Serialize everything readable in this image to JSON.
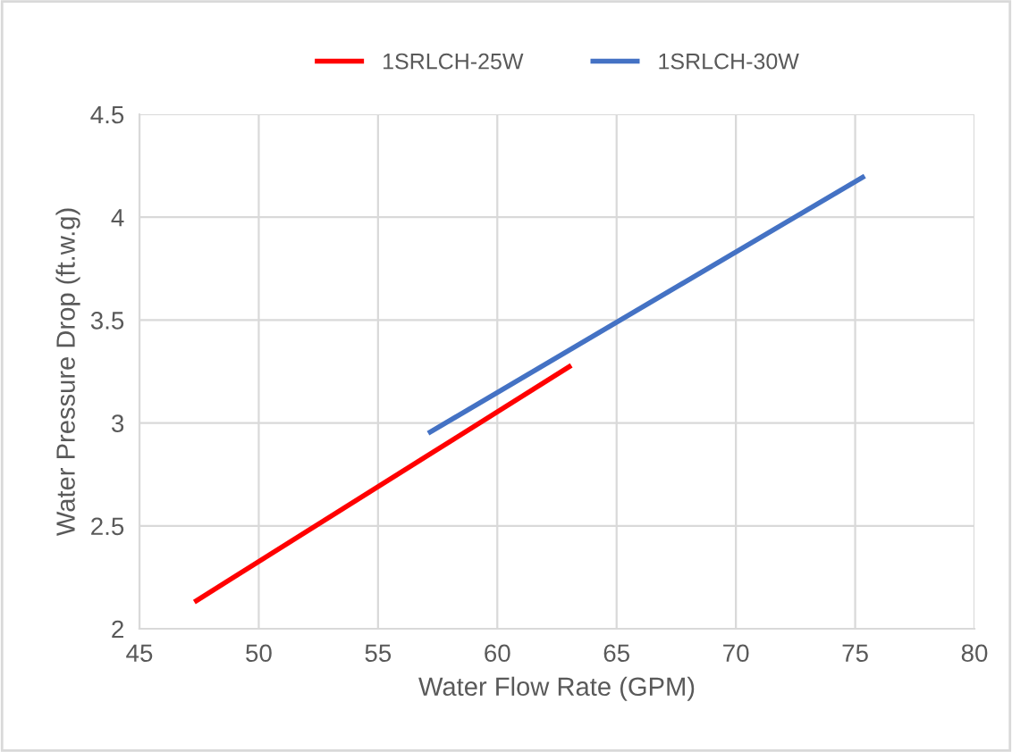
{
  "chart_data": {
    "type": "line",
    "xlabel": "Water Flow Rate (GPM)",
    "ylabel": "Water Pressure Drop (ft.w.g)",
    "series": [
      {
        "name": "1SRLCH-25W",
        "color": "#ff0000",
        "x": [
          47.3,
          63.1
        ],
        "values": [
          2.13,
          3.28
        ]
      },
      {
        "name": "1SRLCH-30W",
        "color": "#4472c4",
        "x": [
          57.1,
          75.4
        ],
        "values": [
          2.95,
          4.2
        ]
      }
    ],
    "xlim": [
      45,
      80
    ],
    "xticks": [
      45,
      50,
      55,
      60,
      65,
      70,
      75,
      80
    ],
    "ylim": [
      2,
      4.5
    ],
    "yticks": [
      2,
      2.5,
      3,
      3.5,
      4,
      4.5
    ],
    "grid": true,
    "legend": "top",
    "marker": "none",
    "line_style": "solid"
  }
}
